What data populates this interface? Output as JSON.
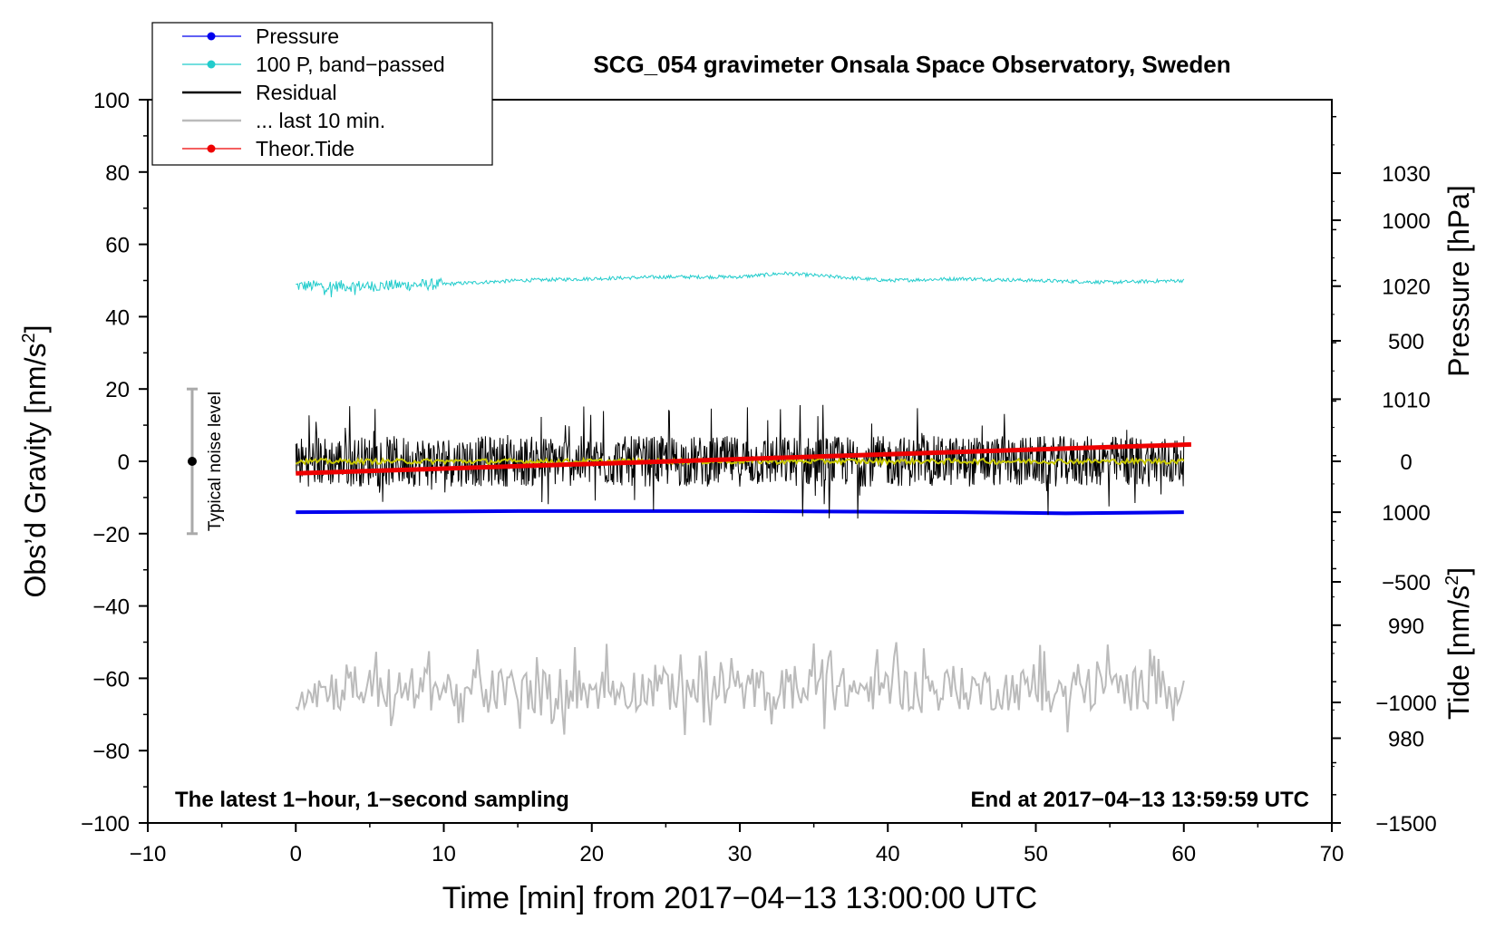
{
  "chart_data": {
    "type": "line",
    "title": "SCG_054 gravimeter Onsala Space Observatory, Sweden",
    "xlabel": "Time [min] from 2017−04−13 13:00:00 UTC",
    "ylabel_main": "Obs’d Gravity [nm/s",
    "ylabel_main_sup": "2",
    "ylabel_main_end": "]",
    "ylabel_pressure": "Pressure [hPa]",
    "ylabel_tide": "Tide [nm/s",
    "ylabel_tide_sup": "2",
    "ylabel_tide_end": "]",
    "xlim": [
      -10,
      70
    ],
    "ylim": [
      -100,
      100
    ],
    "pressure_lim": [
      972.5,
      1036.5
    ],
    "tide_lim": [
      -1500,
      1500
    ],
    "x_ticks": [
      -10,
      0,
      10,
      20,
      30,
      40,
      50,
      60,
      70
    ],
    "x_tick_labels": [
      "−10",
      "0",
      "10",
      "20",
      "30",
      "40",
      "50",
      "60",
      "70"
    ],
    "y_ticks": [
      -100,
      -80,
      -60,
      -40,
      -20,
      0,
      20,
      40,
      60,
      80,
      100
    ],
    "y_tick_labels": [
      "−100",
      "−80",
      "−60",
      "−40",
      "−20",
      "0",
      "20",
      "40",
      "60",
      "80",
      "100"
    ],
    "pressure_ticks": [
      980,
      990,
      1000,
      1010,
      1020,
      1030
    ],
    "pressure_tick_labels": [
      "980",
      "990",
      "1000",
      "1010",
      "1020",
      "1030"
    ],
    "tide_ticks": [
      -1500,
      -1000,
      -500,
      0,
      500,
      1000
    ],
    "tide_tick_labels": [
      "−1500",
      "−1000",
      "−500",
      "0",
      "500",
      "1000"
    ],
    "legend": {
      "position": "top-left",
      "entries": [
        {
          "label": "Pressure",
          "color": "#0000ee",
          "marker": true
        },
        {
          "label": "100 P, band−passed",
          "color": "#22cccc",
          "marker": true
        },
        {
          "label": "Residual",
          "color": "#000000",
          "marker": false
        },
        {
          "label": "... last 10 min.",
          "color": "#bbbbbb",
          "marker": false
        },
        {
          "label": "Theor.Tide",
          "color": "#ee0000",
          "marker": true
        }
      ]
    },
    "annotations": {
      "left_note": "The latest 1−hour, 1−second sampling",
      "right_note": "End at 2017−04−13 13:59:59 UTC",
      "noise_label": "Typical noise level",
      "noise_bar": {
        "x": -7,
        "center": 0,
        "half_range": 20
      }
    },
    "series": [
      {
        "name": "Pressure",
        "axis": "pressure",
        "color": "#0000ee",
        "x": [
          0,
          15,
          30,
          45,
          52,
          60
        ],
        "y": [
          1000.0,
          1000.1,
          1000.1,
          1000.0,
          999.9,
          1000.0
        ]
      },
      {
        "name": "100 P, band−passed",
        "axis": "main",
        "color": "#22cccc",
        "x": [
          0,
          5,
          10,
          15,
          20,
          25,
          30,
          33,
          40,
          45,
          50,
          55,
          60
        ],
        "y": [
          48.5,
          48.5,
          49,
          50,
          50.5,
          51,
          51,
          52,
          50,
          50.5,
          50,
          49.5,
          50
        ]
      },
      {
        "name": "Residual",
        "axis": "main",
        "color": "#000000",
        "x_range": [
          0,
          60
        ],
        "amplitude": 7,
        "spike_max": 16
      },
      {
        "name": "Residual (smoothed)",
        "axis": "main",
        "color": "#c8c800",
        "x_range": [
          0,
          60
        ],
        "level": 0
      },
      {
        "name": "Theor.Tide",
        "axis": "tide",
        "color": "#ee0000",
        "x": [
          0,
          60.5
        ],
        "y": [
          -50,
          70
        ]
      },
      {
        "name": "... last 10 min.",
        "axis": "main",
        "color": "#bbbbbb",
        "x_range": [
          0,
          60
        ],
        "center": -63,
        "amplitude": 6,
        "spike_max": 13
      }
    ]
  }
}
